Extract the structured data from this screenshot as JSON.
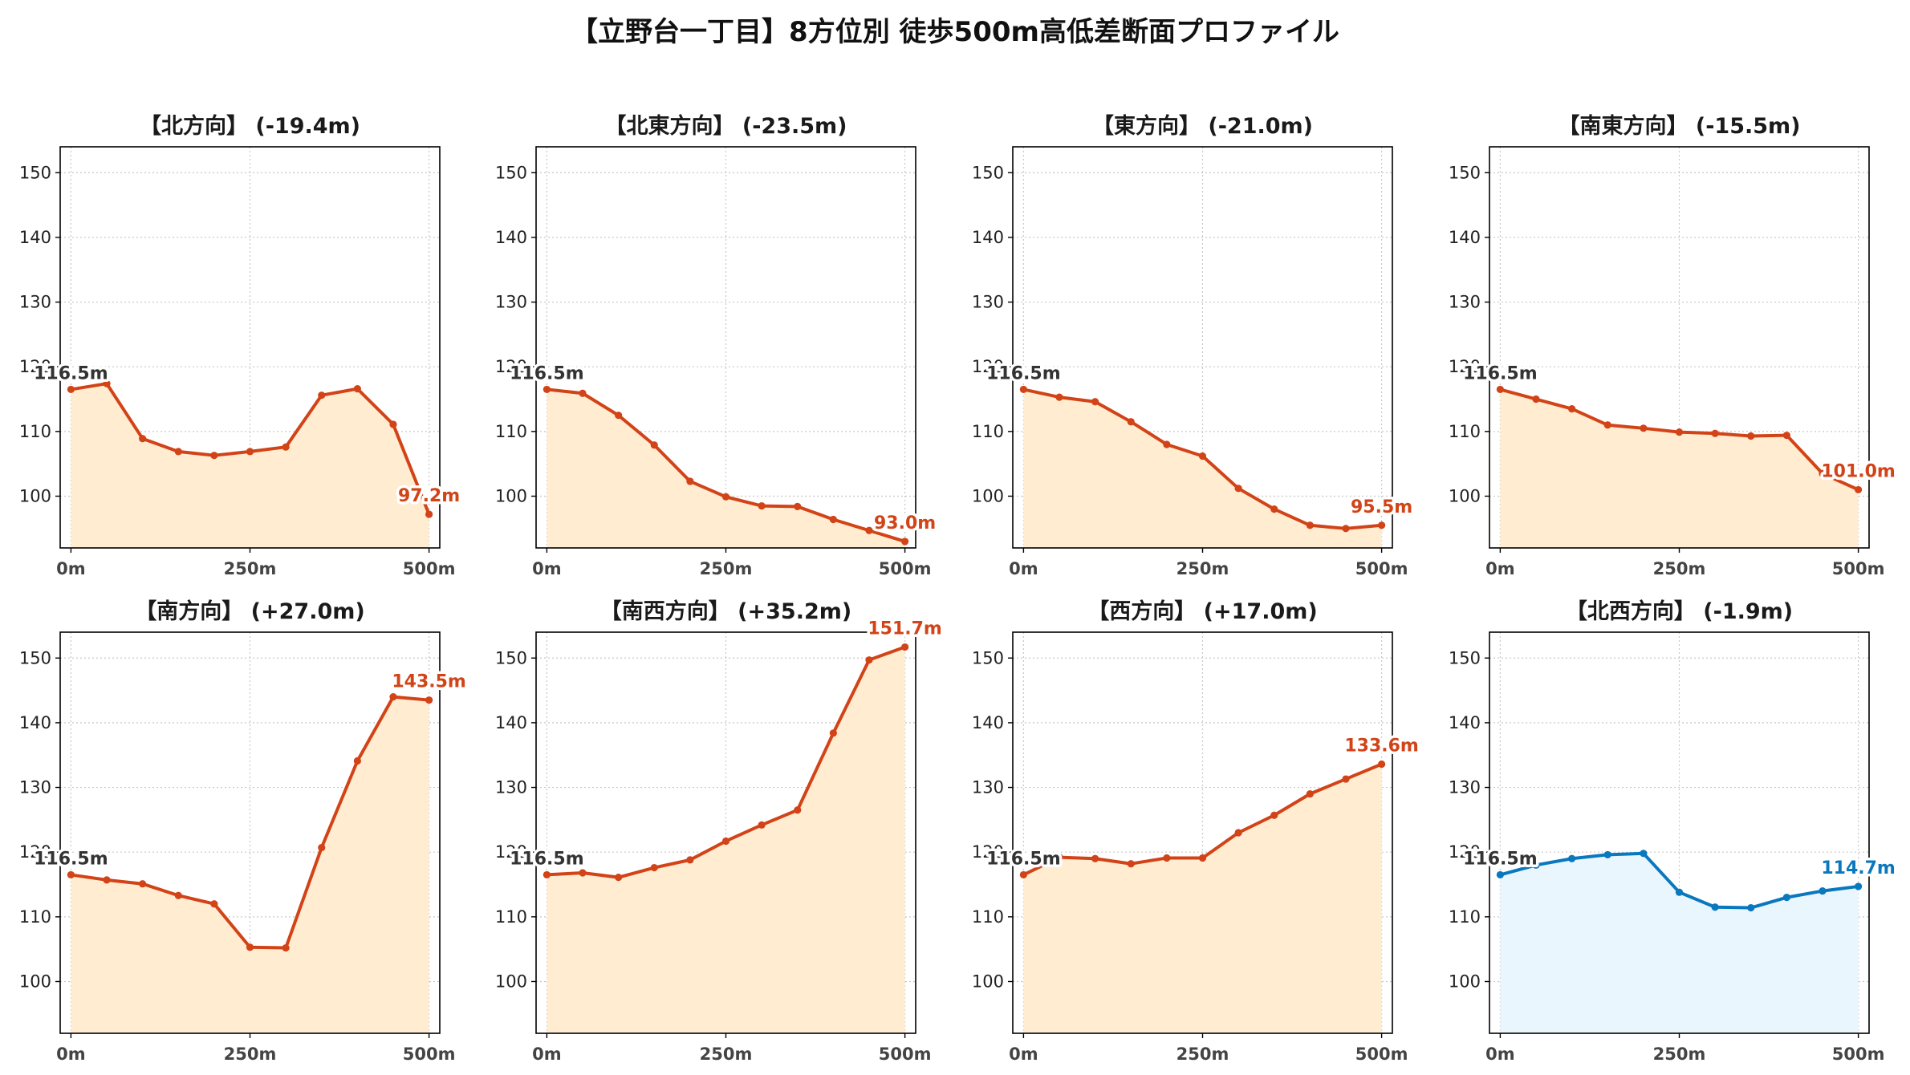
{
  "title": "【立野台一丁目】8方位別 徒歩500m高低差断面プロファイル",
  "colors": {
    "down": "#d24317",
    "down_fill": "#ffecd1",
    "up": "#d24317",
    "up_fill": "#ffecd1",
    "flat": "#0a78be",
    "flat_fill": "#eaf6fd",
    "grid": "#c8c8c8",
    "start_label": "#333333"
  },
  "chart_data": [
    {
      "type": "area",
      "title": "【北方向】 (-19.4m)",
      "color_key": "down",
      "x": [
        0,
        50,
        100,
        150,
        200,
        250,
        300,
        350,
        400,
        450,
        500
      ],
      "values": [
        116.5,
        117.4,
        108.9,
        106.9,
        106.3,
        106.9,
        107.6,
        115.6,
        116.6,
        111.1,
        97.2
      ],
      "start_label": "116.5m",
      "end_label": "97.2m",
      "xticks": [
        "0m",
        "250m",
        "500m"
      ],
      "yticks": [
        100,
        110,
        120,
        130,
        140,
        150
      ],
      "ylim": [
        92,
        154
      ],
      "xlim": [
        -15,
        515
      ],
      "grid": true
    },
    {
      "type": "area",
      "title": "【北東方向】 (-23.5m)",
      "color_key": "down",
      "x": [
        0,
        50,
        100,
        150,
        200,
        250,
        300,
        350,
        400,
        450,
        500
      ],
      "values": [
        116.5,
        115.9,
        112.5,
        107.9,
        102.3,
        99.9,
        98.5,
        98.4,
        96.4,
        94.7,
        93.0
      ],
      "start_label": "116.5m",
      "end_label": "93.0m",
      "xticks": [
        "0m",
        "250m",
        "500m"
      ],
      "yticks": [
        100,
        110,
        120,
        130,
        140,
        150
      ],
      "ylim": [
        92,
        154
      ],
      "xlim": [
        -15,
        515
      ],
      "grid": true
    },
    {
      "type": "area",
      "title": "【東方向】 (-21.0m)",
      "color_key": "down",
      "x": [
        0,
        50,
        100,
        150,
        200,
        250,
        300,
        350,
        400,
        450,
        500
      ],
      "values": [
        116.5,
        115.3,
        114.6,
        111.5,
        108.0,
        106.2,
        101.2,
        98.0,
        95.5,
        95.0,
        95.5
      ],
      "start_label": "116.5m",
      "end_label": "95.5m",
      "xticks": [
        "0m",
        "250m",
        "500m"
      ],
      "yticks": [
        100,
        110,
        120,
        130,
        140,
        150
      ],
      "ylim": [
        92,
        154
      ],
      "xlim": [
        -15,
        515
      ],
      "grid": true
    },
    {
      "type": "area",
      "title": "【南東方向】 (-15.5m)",
      "color_key": "down",
      "x": [
        0,
        50,
        100,
        150,
        200,
        250,
        300,
        350,
        400,
        450,
        500
      ],
      "values": [
        116.5,
        115.0,
        113.5,
        111.0,
        110.5,
        109.9,
        109.7,
        109.3,
        109.4,
        103.5,
        101.0
      ],
      "start_label": "116.5m",
      "end_label": "101.0m",
      "xticks": [
        "0m",
        "250m",
        "500m"
      ],
      "yticks": [
        100,
        110,
        120,
        130,
        140,
        150
      ],
      "ylim": [
        92,
        154
      ],
      "xlim": [
        -15,
        515
      ],
      "grid": true
    },
    {
      "type": "area",
      "title": "【南方向】 (+27.0m)",
      "color_key": "up",
      "x": [
        0,
        50,
        100,
        150,
        200,
        250,
        300,
        350,
        400,
        450,
        500
      ],
      "values": [
        116.5,
        115.7,
        115.1,
        113.3,
        112.0,
        105.3,
        105.2,
        120.7,
        134.1,
        144.0,
        143.5
      ],
      "start_label": "116.5m",
      "end_label": "143.5m",
      "xticks": [
        "0m",
        "250m",
        "500m"
      ],
      "yticks": [
        100,
        110,
        120,
        130,
        140,
        150
      ],
      "ylim": [
        92,
        154
      ],
      "xlim": [
        -15,
        515
      ],
      "grid": true
    },
    {
      "type": "area",
      "title": "【南西方向】 (+35.2m)",
      "color_key": "up",
      "x": [
        0,
        50,
        100,
        150,
        200,
        250,
        300,
        350,
        400,
        450,
        500
      ],
      "values": [
        116.5,
        116.8,
        116.1,
        117.6,
        118.8,
        121.7,
        124.2,
        126.5,
        138.4,
        149.7,
        151.7
      ],
      "start_label": "116.5m",
      "end_label": "151.7m",
      "xticks": [
        "0m",
        "250m",
        "500m"
      ],
      "yticks": [
        100,
        110,
        120,
        130,
        140,
        150
      ],
      "ylim": [
        92,
        154
      ],
      "xlim": [
        -15,
        515
      ],
      "grid": true
    },
    {
      "type": "area",
      "title": "【西方向】 (+17.0m)",
      "color_key": "up",
      "x": [
        0,
        50,
        100,
        150,
        200,
        250,
        300,
        350,
        400,
        450,
        500
      ],
      "values": [
        116.5,
        119.2,
        119.0,
        118.2,
        119.1,
        119.1,
        123.0,
        125.7,
        129.0,
        131.3,
        133.6
      ],
      "start_label": "116.5m",
      "end_label": "133.6m",
      "xticks": [
        "0m",
        "250m",
        "500m"
      ],
      "yticks": [
        100,
        110,
        120,
        130,
        140,
        150
      ],
      "ylim": [
        92,
        154
      ],
      "xlim": [
        -15,
        515
      ],
      "grid": true
    },
    {
      "type": "area",
      "title": "【北西方向】 (-1.9m)",
      "color_key": "flat",
      "x": [
        0,
        50,
        100,
        150,
        200,
        250,
        300,
        350,
        400,
        450,
        500
      ],
      "values": [
        116.5,
        118.0,
        119.0,
        119.6,
        119.8,
        113.8,
        111.5,
        111.4,
        113.0,
        114.0,
        114.7
      ],
      "start_label": "116.5m",
      "end_label": "114.7m",
      "xticks": [
        "0m",
        "250m",
        "500m"
      ],
      "yticks": [
        100,
        110,
        120,
        130,
        140,
        150
      ],
      "ylim": [
        92,
        154
      ],
      "xlim": [
        -15,
        515
      ],
      "grid": true
    }
  ]
}
